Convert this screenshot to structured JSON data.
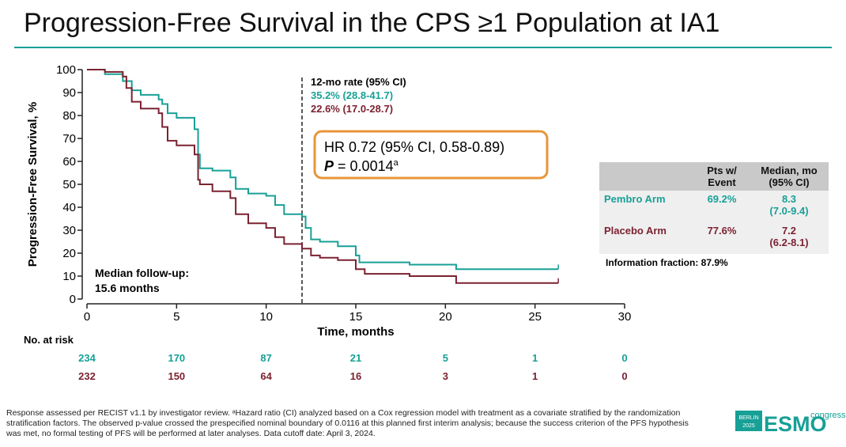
{
  "chart_data": {
    "type": "step",
    "title": "Progression-Free Survival in the CPS ≥1 Population at IA1",
    "y_label": "Progression-Free Survival, %",
    "x_label": "Time, months",
    "xlim": [
      0,
      30
    ],
    "xticks": [
      0,
      5,
      10,
      15,
      20,
      25,
      30
    ],
    "ylim": [
      0,
      100
    ],
    "yticks": [
      0,
      10,
      20,
      30,
      40,
      50,
      60,
      70,
      80,
      90,
      100
    ],
    "reference_x": 12,
    "series": [
      {
        "name": "Pembro Arm",
        "color": "#17a096",
        "x": [
          0,
          1,
          2,
          2.5,
          3,
          4,
          4.2,
          4.5,
          5,
          6,
          6.2,
          6.3,
          7,
          8,
          8.3,
          9,
          10,
          10.5,
          11,
          12,
          12.2,
          12.5,
          13,
          14,
          15,
          15.2,
          16,
          17,
          18,
          20.5,
          20.6,
          26.3
        ],
        "values": [
          100,
          98,
          95,
          91,
          89,
          87,
          85,
          81,
          79,
          74,
          63,
          57,
          56,
          53,
          48,
          46,
          45,
          41,
          37,
          36,
          31,
          26,
          25,
          23,
          19,
          16,
          16,
          16,
          15,
          15,
          13,
          13
        ]
      },
      {
        "name": "Placebo Arm",
        "color": "#7b2231",
        "x": [
          0,
          1,
          2,
          2.2,
          2.5,
          3,
          4,
          4.2,
          4.5,
          5,
          6,
          6.2,
          6.3,
          7,
          8,
          8.3,
          9,
          10,
          10.5,
          11,
          12,
          12.5,
          13,
          14,
          15,
          15.5,
          18,
          20.5,
          20.6,
          26.3
        ],
        "values": [
          100,
          99,
          97,
          92,
          86,
          83,
          81,
          75,
          69,
          67,
          63,
          52,
          50,
          47,
          44,
          37,
          33,
          31,
          27,
          24,
          22,
          19,
          18,
          17,
          13,
          11,
          10,
          10,
          7,
          7
        ]
      }
    ],
    "rate_title": "12-mo rate (95% CI)",
    "rates": [
      "35.2% (28.8-41.7)",
      "22.6% (17.0-28.7)"
    ],
    "hr_text": "HR 0.72 (95% CI, 0.58-0.89)",
    "p_label": "P",
    "p_value": "= 0.0014",
    "p_sup": "a",
    "follow_up": [
      "Median follow-up:",
      "15.6 months"
    ],
    "at_risk": {
      "title": "No. at risk",
      "rows": [
        [
          234,
          170,
          87,
          21,
          5,
          1,
          0
        ],
        [
          232,
          150,
          64,
          16,
          3,
          1,
          0
        ]
      ]
    },
    "table": {
      "headers": [
        "Pts w/ Event",
        "Median, mo (95% CI)"
      ],
      "rows": [
        [
          "Pembro Arm",
          "69.2%",
          "8.3",
          "(7.0-9.4)"
        ],
        [
          "Placebo Arm",
          "77.6%",
          "7.2",
          "(6.2-8.1)"
        ]
      ],
      "note": "Information fraction: 87.9%"
    },
    "footnote": "Response assessed per RECIST v1.1 by investigator review. ᵃHazard ratio (CI) analyzed based on a Cox regression model with treatment as a covariate stratified by the randomization stratification factors. The observed p-value crossed the prespecified nominal boundary of 0.0116 at this planned first interim analysis; because the success criterion of the PFS hypothesis was met, no formal testing of PFS will be performed at later analyses. Data cutoff date: April 3, 2024.",
    "logo": [
      "BERLIN",
      "2025",
      "ESMO",
      "congress"
    ]
  }
}
